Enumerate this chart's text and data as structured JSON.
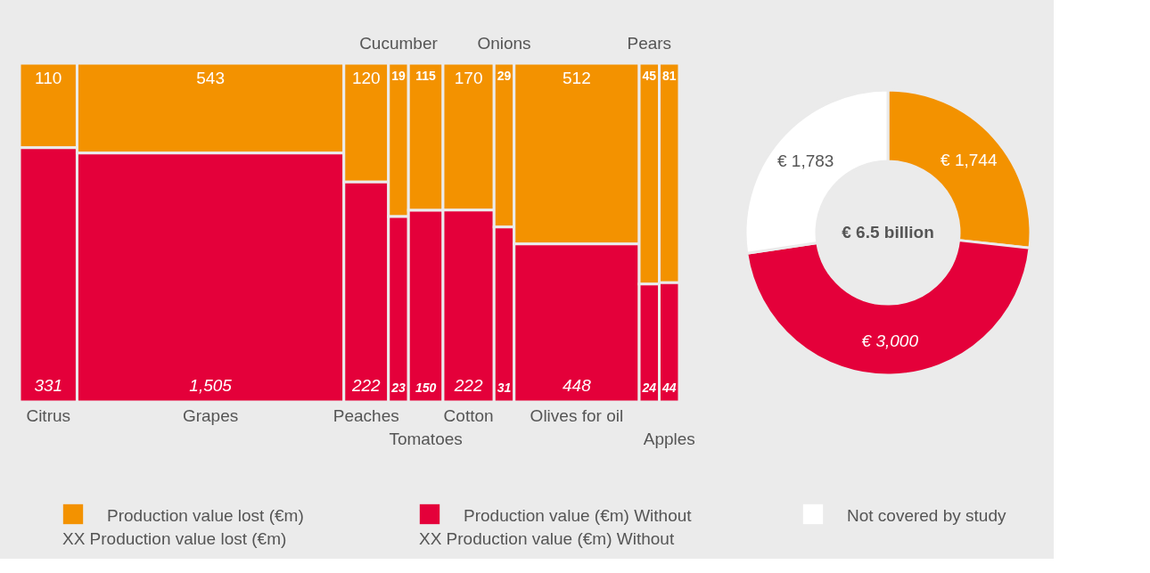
{
  "chart_data": [
    {
      "type": "other",
      "categories": [
        "Citrus",
        "Grapes",
        "Peaches",
        "Cucumber",
        "Tomatoes",
        "Cotton",
        "Onions",
        "Olives for oil",
        "Pears",
        "Apples"
      ],
      "series": [
        {
          "name": "Production value lost (€m)",
          "color": "#f39200",
          "values": [
            110,
            543,
            120,
            19,
            115,
            170,
            29,
            512,
            45,
            81
          ]
        },
        {
          "name": "Production value (€m) Without",
          "color": "#e4003a",
          "values": [
            331,
            1505,
            222,
            23,
            150,
            222,
            31,
            448,
            24,
            44
          ],
          "value_labels": [
            "331",
            "1,505",
            "222",
            "23",
            "150",
            "222",
            "31",
            "448",
            "24",
            "44"
          ]
        }
      ],
      "data_labels": true,
      "legend": "bottom",
      "annotations": [
        "XX Production value lost (€m)",
        "XX Production value (€m) Without"
      ]
    },
    {
      "type": "donut",
      "categories": [
        null,
        null,
        "Not covered by study"
      ],
      "values": [
        1744,
        3000,
        1783
      ],
      "colors": [
        "#f39200",
        "#e4003a",
        "#ffffff"
      ],
      "value_labels": [
        "€ 1,744",
        "€ 3,000",
        "€ 1,783"
      ],
      "annotations": [
        "€ 6.5 billion"
      ]
    }
  ]
}
